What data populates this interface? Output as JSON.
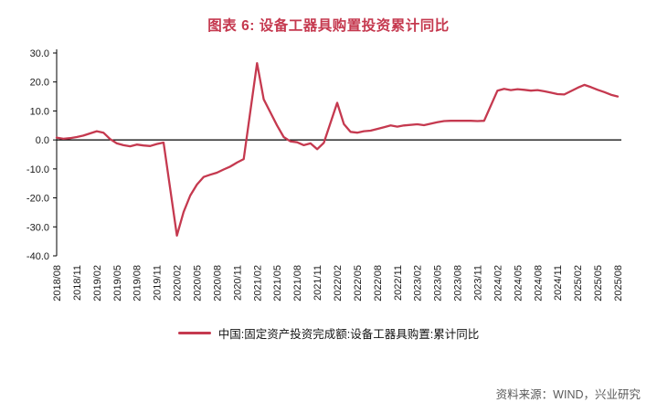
{
  "header": {
    "title": "图表 6: 设备工器具购置投资累计同比"
  },
  "legend": {
    "label": "中国:固定资产投资完成额:设备工器具购置:累计同比"
  },
  "source": {
    "text": "资料来源：WIND，兴业研究"
  },
  "colors": {
    "line": "#C5394F",
    "title": "#C5394F",
    "axis": "#000000",
    "tick_text": "#1a1a1a",
    "source_text": "#595959"
  },
  "chart_data": {
    "type": "line",
    "title": "图表 6: 设备工器具购置投资累计同比",
    "xlabel": "",
    "ylabel": "",
    "ylim": [
      -40,
      30
    ],
    "grid": false,
    "legend_position": "bottom",
    "ytick_values": [
      30,
      20,
      10,
      0,
      -10,
      -20,
      -30,
      -40
    ],
    "ytick_labels": [
      "30.0",
      "20.0",
      "10.0",
      "0.0",
      "-10.0",
      "-20.0",
      "-30.0",
      "-40.0"
    ],
    "xticks": [
      "2018/08",
      "2018/11",
      "2019/02",
      "2019/05",
      "2019/08",
      "2019/11",
      "2020/02",
      "2020/05",
      "2020/08",
      "2020/11",
      "2021/02",
      "2021/05",
      "2021/08",
      "2021/11",
      "2022/02",
      "2022/05",
      "2022/08",
      "2022/11",
      "2023/02",
      "2023/05",
      "2023/08",
      "2023/11",
      "2024/02",
      "2024/05",
      "2024/08",
      "2024/11",
      "2025/02",
      "2025/05",
      "2025/08"
    ],
    "series": [
      {
        "name": "中国:固定资产投资完成额:设备工器具购置:累计同比",
        "x": [
          "2018/08",
          "2018/09",
          "2018/10",
          "2018/11",
          "2018/12",
          "2019/02",
          "2019/03",
          "2019/04",
          "2019/05",
          "2019/06",
          "2019/07",
          "2019/08",
          "2019/09",
          "2019/10",
          "2019/11",
          "2019/12",
          "2020/02",
          "2020/03",
          "2020/04",
          "2020/05",
          "2020/06",
          "2020/07",
          "2020/08",
          "2020/09",
          "2020/10",
          "2020/11",
          "2020/12",
          "2021/02",
          "2021/03",
          "2021/04",
          "2021/05",
          "2021/06",
          "2021/07",
          "2021/08",
          "2021/09",
          "2021/10",
          "2021/11",
          "2021/12",
          "2022/02",
          "2022/03",
          "2022/04",
          "2022/05",
          "2022/06",
          "2022/07",
          "2022/08",
          "2022/09",
          "2022/10",
          "2022/11",
          "2022/12",
          "2023/02",
          "2023/03",
          "2023/04",
          "2023/05",
          "2023/06",
          "2023/07",
          "2023/08",
          "2023/09",
          "2023/10",
          "2023/11",
          "2023/12",
          "2024/02",
          "2024/03",
          "2024/04",
          "2024/05",
          "2024/06",
          "2024/07",
          "2024/08",
          "2024/09",
          "2024/10",
          "2024/11",
          "2024/12",
          "2025/02",
          "2025/03",
          "2025/04",
          "2025/05",
          "2025/06",
          "2025/07",
          "2025/08"
        ],
        "values": [
          0.8,
          0.4,
          0.6,
          1.0,
          1.5,
          3.0,
          2.5,
          0.3,
          -1.2,
          -1.8,
          -2.2,
          -1.6,
          -1.9,
          -2.1,
          -1.4,
          -0.9,
          -33.0,
          -24.9,
          -19.2,
          -15.4,
          -12.8,
          -12.0,
          -11.3,
          -10.2,
          -9.2,
          -7.8,
          -6.6,
          26.5,
          14.0,
          9.5,
          5.0,
          1.0,
          -0.5,
          -0.8,
          -1.8,
          -1.2,
          -3.2,
          -1.0,
          12.8,
          5.5,
          2.8,
          2.5,
          3.0,
          3.2,
          3.8,
          4.4,
          5.0,
          4.6,
          5.0,
          5.4,
          5.1,
          5.6,
          6.1,
          6.5,
          6.6,
          6.6,
          6.6,
          6.6,
          6.5,
          6.6,
          17.0,
          17.6,
          17.2,
          17.5,
          17.3,
          17.0,
          17.2,
          16.8,
          16.3,
          15.8,
          15.7,
          18.0,
          19.0,
          18.2,
          17.3,
          16.5,
          15.6,
          15.0
        ]
      }
    ]
  }
}
